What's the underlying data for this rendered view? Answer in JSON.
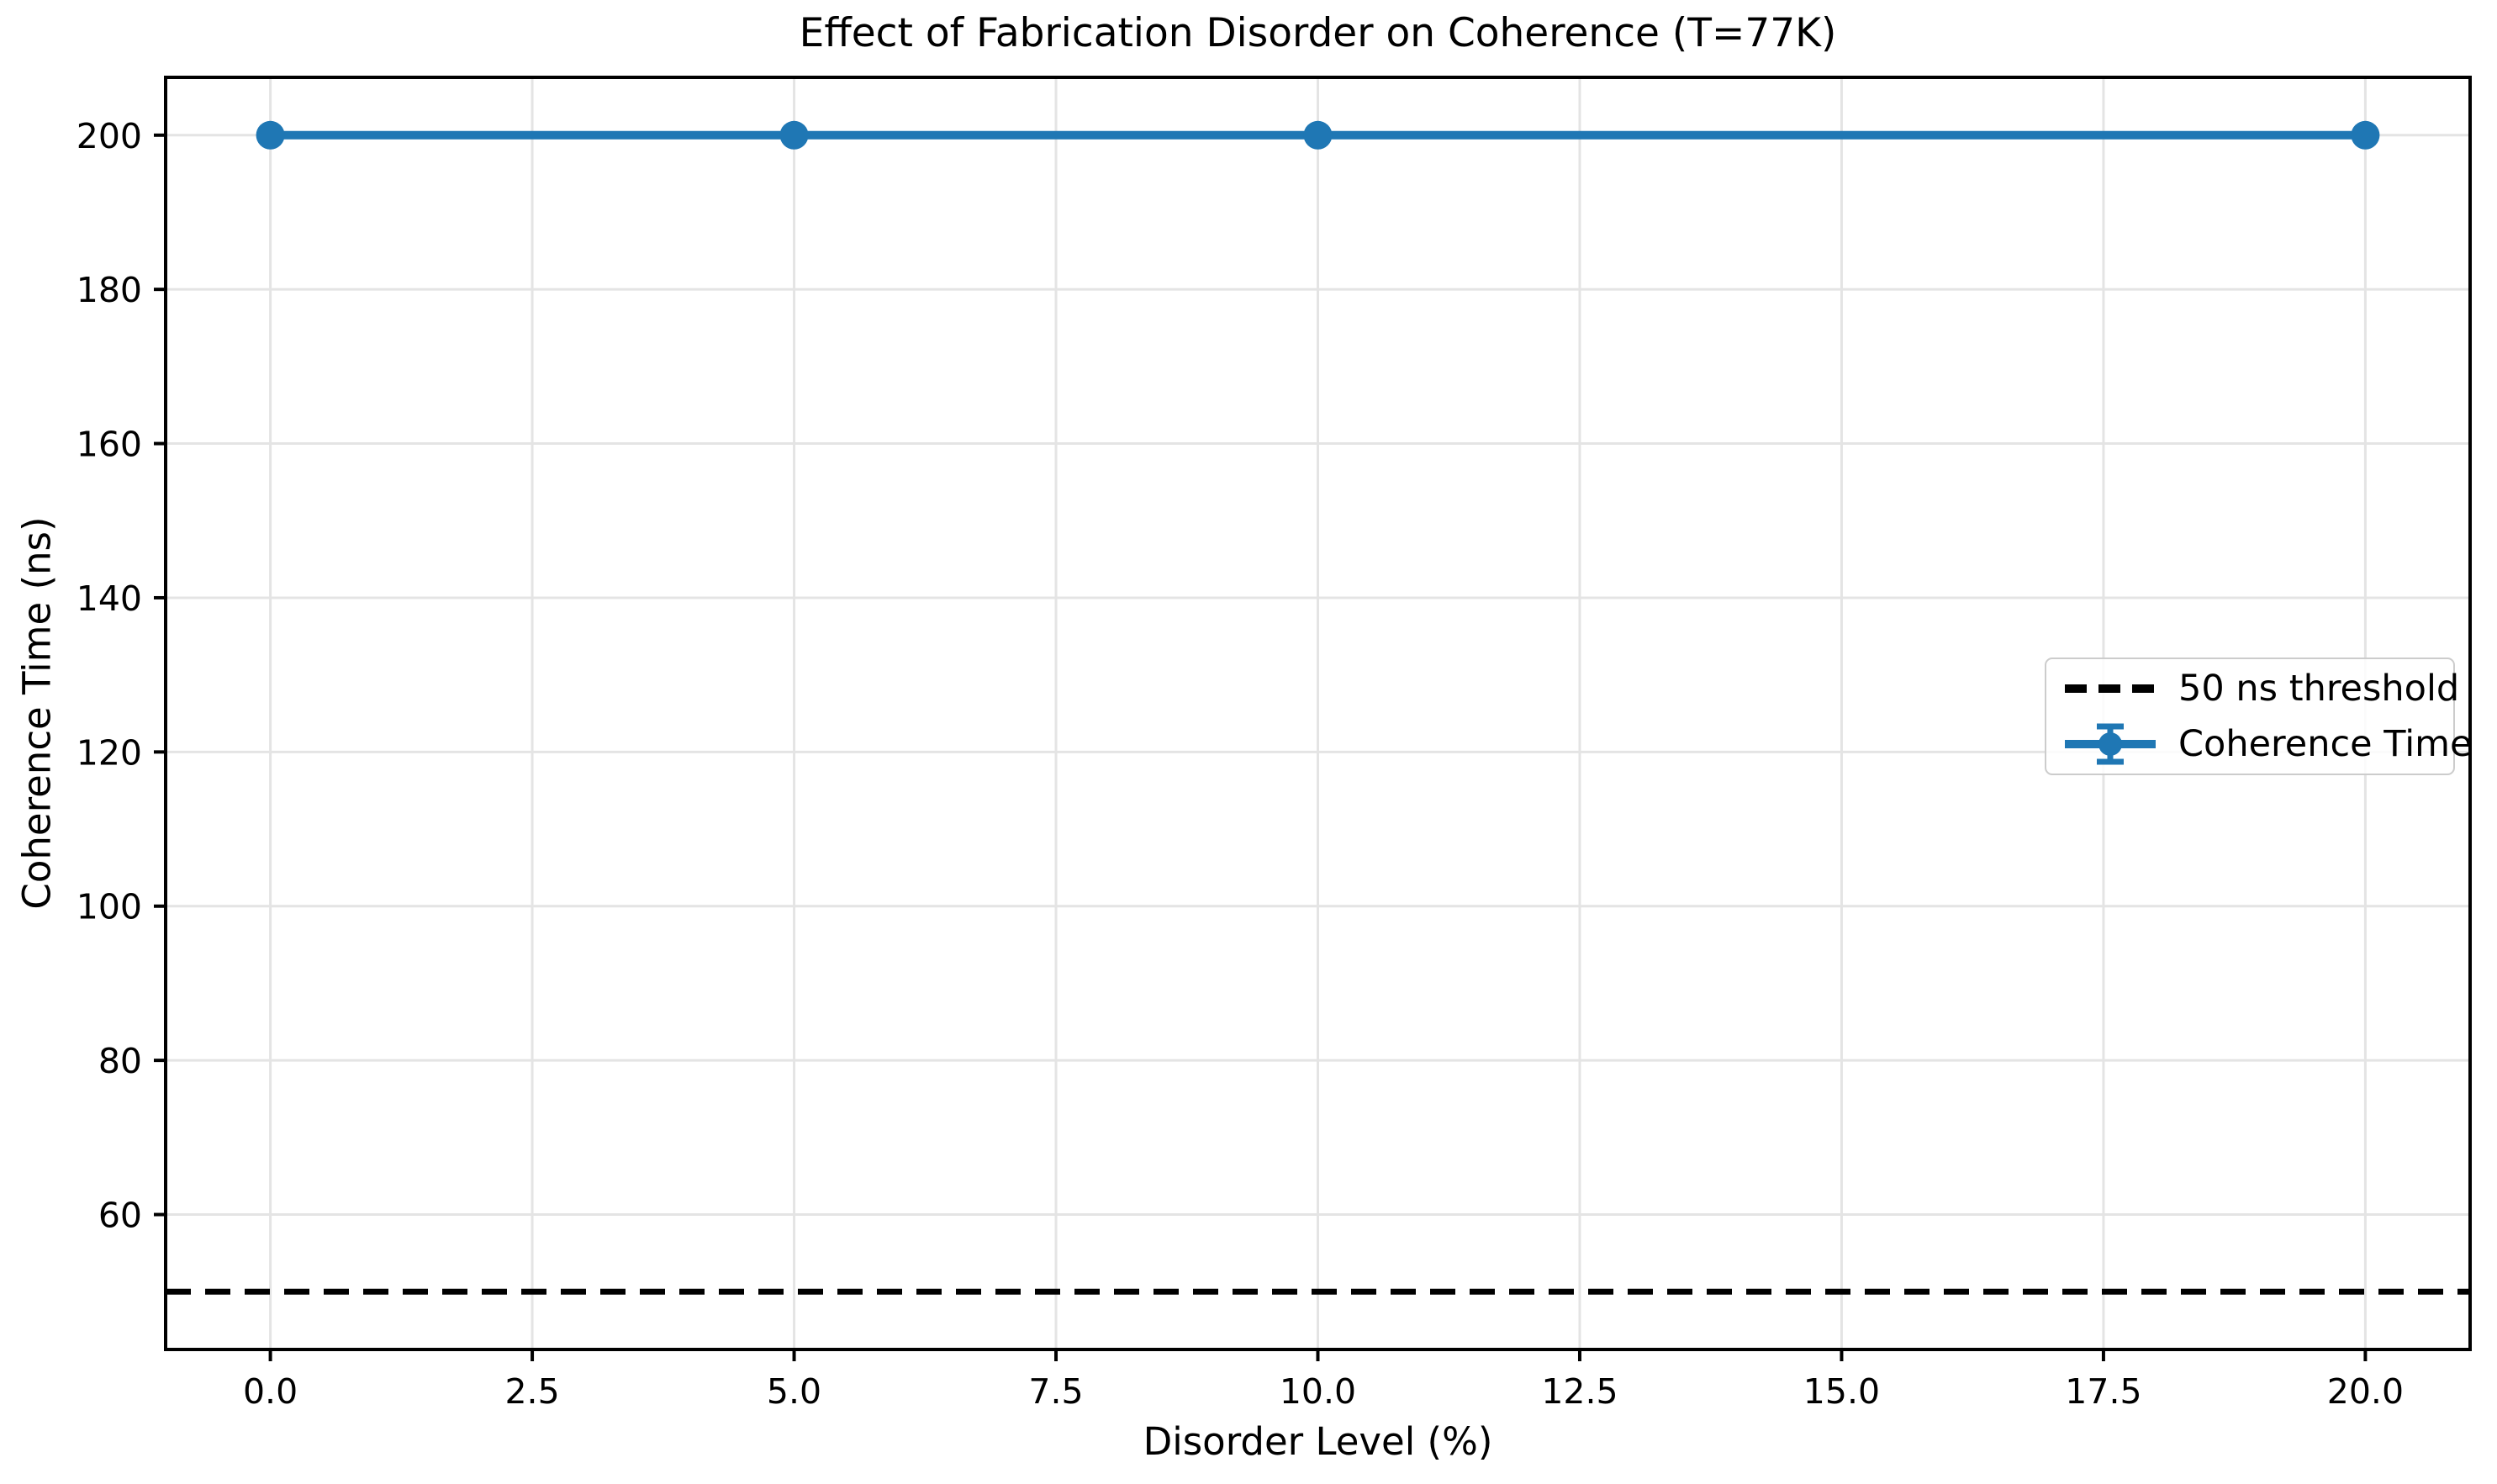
{
  "chart_data": {
    "type": "line",
    "title": "Effect of Fabrication Disorder on Coherence (T=77K)",
    "xlabel": "Disorder Level (%)",
    "ylabel": "Coherence Time (ns)",
    "x": [
      0,
      5,
      10,
      20
    ],
    "series": [
      {
        "name": "Coherence Time",
        "values": [
          200,
          200,
          200,
          200
        ],
        "color": "#1f77b4",
        "marker": "circle",
        "style": "errorbar-solid"
      }
    ],
    "threshold_line": {
      "label": "50 ns threshold",
      "y": 50,
      "color": "#000000",
      "linestyle": "dashed"
    },
    "x_tick_values": [
      0,
      2.5,
      5,
      7.5,
      10,
      12.5,
      15,
      17.5,
      20
    ],
    "x_tick_labels": [
      "0.0",
      "2.5",
      "5.0",
      "7.5",
      "10.0",
      "12.5",
      "15.0",
      "17.5",
      "20.0"
    ],
    "y_tick_values": [
      60,
      80,
      100,
      120,
      140,
      160,
      180,
      200
    ],
    "y_tick_labels": [
      "60",
      "80",
      "100",
      "120",
      "140",
      "160",
      "180",
      "200"
    ],
    "xlim": [
      -1,
      21
    ],
    "ylim": [
      42.5,
      207.5
    ],
    "grid": true,
    "legend": {
      "position": "center right",
      "entries": [
        {
          "label": "50 ns threshold",
          "glyph": "dashed-line",
          "color": "#000000"
        },
        {
          "label": "Coherence Time",
          "glyph": "errorbar-marker",
          "color": "#1f77b4"
        }
      ]
    },
    "colors": {
      "grid": "#e4e4e4",
      "spine": "#000000",
      "background": "#ffffff",
      "accent": "#1f77b4"
    }
  }
}
